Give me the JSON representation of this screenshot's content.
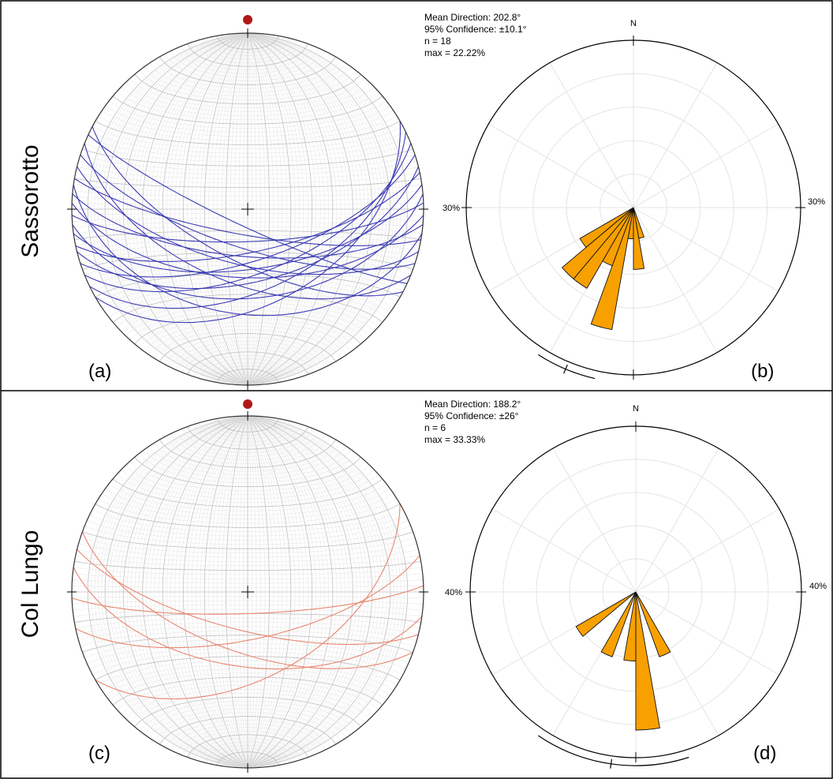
{
  "panels": [
    {
      "site": "Sassorotto",
      "net_letter": "(a)",
      "rose_letter": "(b)",
      "great_circle_color": "#3a3ab4",
      "pole_color": "#b01818",
      "stats": {
        "mean_direction": "Mean Direction: 202.8°",
        "confidence": "95% Confidence: ±10.1°",
        "n": "n = 18",
        "max": "max = 22.22%"
      },
      "north_label": "N",
      "ring_label": "30%",
      "rose_max_percent": 30,
      "mean_direction_deg": 202.8,
      "confidence_deg": 10.1,
      "planes": [
        {
          "strike": 60,
          "dip": 45
        },
        {
          "strike": 64,
          "dip": 52
        },
        {
          "strike": 68,
          "dip": 60
        },
        {
          "strike": 72,
          "dip": 66
        },
        {
          "strike": 76,
          "dip": 56
        },
        {
          "strike": 78,
          "dip": 70
        },
        {
          "strike": 82,
          "dip": 62
        },
        {
          "strike": 85,
          "dip": 48
        },
        {
          "strike": 88,
          "dip": 75
        },
        {
          "strike": 92,
          "dip": 58
        },
        {
          "strike": 95,
          "dip": 68
        },
        {
          "strike": 98,
          "dip": 40
        },
        {
          "strike": 100,
          "dip": 78
        },
        {
          "strike": 104,
          "dip": 64
        },
        {
          "strike": 108,
          "dip": 72
        },
        {
          "strike": 112,
          "dip": 55
        },
        {
          "strike": 115,
          "dip": 82
        },
        {
          "strike": 118,
          "dip": 66
        }
      ],
      "rose_petals": [
        {
          "azimuth": 175,
          "percent": 11.1
        },
        {
          "azimuth": 185,
          "percent": 5.6
        },
        {
          "azimuth": 195,
          "percent": 22.22
        },
        {
          "azimuth": 205,
          "percent": 11.1
        },
        {
          "azimuth": 215,
          "percent": 16.7
        },
        {
          "azimuth": 225,
          "percent": 16.7
        },
        {
          "azimuth": 235,
          "percent": 11.1
        },
        {
          "azimuth": 165,
          "percent": 5.6
        }
      ]
    },
    {
      "site": "Col Lungo",
      "net_letter": "(c)",
      "rose_letter": "(d)",
      "great_circle_color": "#e8866e",
      "pole_color": "#b01818",
      "stats": {
        "mean_direction": "Mean Direction: 188.2°",
        "confidence": "95% Confidence: ±26°",
        "n": "n = 6",
        "max": "max = 33.33%"
      },
      "north_label": "N",
      "ring_label": "40%",
      "rose_max_percent": 40,
      "mean_direction_deg": 188.2,
      "confidence_deg": 26,
      "planes": [
        {
          "strike": 60,
          "dip": 50
        },
        {
          "strike": 78,
          "dip": 68
        },
        {
          "strike": 88,
          "dip": 80
        },
        {
          "strike": 98,
          "dip": 55
        },
        {
          "strike": 104,
          "dip": 72
        },
        {
          "strike": 110,
          "dip": 62
        }
      ],
      "rose_petals": [
        {
          "azimuth": 175,
          "percent": 33.33
        },
        {
          "azimuth": 185,
          "percent": 16.67
        },
        {
          "azimuth": 205,
          "percent": 16.67
        },
        {
          "azimuth": 235,
          "percent": 16.67
        },
        {
          "azimuth": 155,
          "percent": 16.67
        }
      ]
    }
  ]
}
